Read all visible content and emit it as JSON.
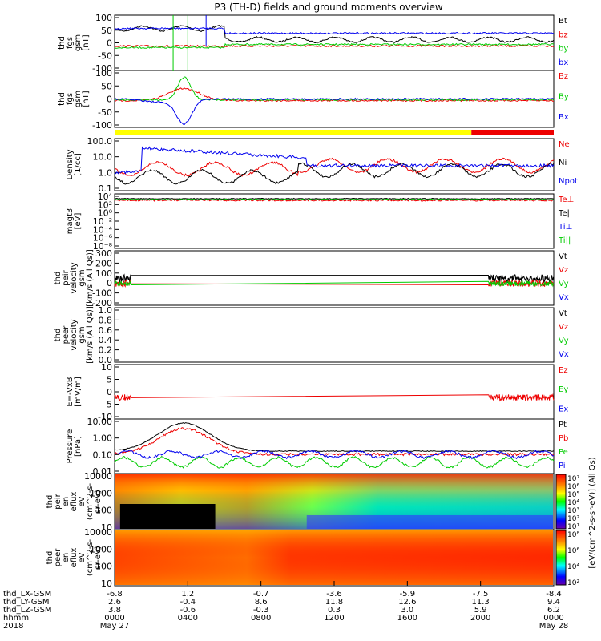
{
  "title": "P3 (TH-D) fields and ground moments overview",
  "colors": {
    "black": "#000000",
    "red": "#ee0000",
    "green": "#00cc00",
    "blue": "#0000ee",
    "yellow": "#ffff00"
  },
  "x_axis": {
    "ticks": [
      0,
      4,
      8,
      12,
      16,
      20,
      24
    ],
    "rows": [
      {
        "label": "thd_LX-GSM",
        "values": [
          "-6.8",
          "1.2",
          "-0.7",
          "-3.6",
          "-5.9",
          "-7.5",
          "-8.4"
        ]
      },
      {
        "label": "thd_LY-GSM",
        "values": [
          "2.6",
          "-0.4",
          "8.6",
          "11.8",
          "12.6",
          "11.3",
          "9.4"
        ]
      },
      {
        "label": "thd_LZ-GSM",
        "values": [
          "3.8",
          "-0.6",
          "-0.3",
          "0.3",
          "3.0",
          "5.9",
          "6.2"
        ]
      },
      {
        "label": "hhmm",
        "values": [
          "0000",
          "0400",
          "0800",
          "1200",
          "1600",
          "2000",
          "0000"
        ]
      },
      {
        "label": "2018",
        "values": [
          "May 27",
          "",
          "",
          "",
          "",
          "",
          "May 28"
        ]
      }
    ]
  },
  "chart_data": [
    {
      "type": "line",
      "id": "fgs_low",
      "ylabel": [
        "thd",
        "fgs",
        "gsm",
        "[nT]"
      ],
      "ylim": [
        -100,
        100
      ],
      "yticks": [
        "100",
        "50",
        "0",
        "-50",
        "-100"
      ],
      "series": [
        {
          "name": "Bt",
          "color": "black"
        },
        {
          "name": "bz",
          "color": "red"
        },
        {
          "name": "by",
          "color": "green"
        },
        {
          "name": "bx",
          "color": "blue"
        }
      ]
    },
    {
      "type": "line",
      "id": "fgs",
      "ylabel": [
        "thd",
        "fgs",
        "gsm",
        "[nT]"
      ],
      "ylim": [
        -120,
        120
      ],
      "yticks": [
        "100",
        "50",
        "0",
        "-50",
        "-100"
      ],
      "series": [
        {
          "name": "Bz",
          "color": "red"
        },
        {
          "name": "By",
          "color": "green"
        },
        {
          "name": "Bx",
          "color": "blue"
        }
      ]
    },
    {
      "type": "line",
      "id": "density",
      "ylabel": [
        "Density",
        "[1/cc]"
      ],
      "scale": "log",
      "yticks": [
        "100.0",
        "10.0",
        "1.0",
        "0.1"
      ],
      "series": [
        {
          "name": "Ne",
          "color": "red"
        },
        {
          "name": "Ni",
          "color": "black"
        },
        {
          "name": "Npot",
          "color": "blue"
        }
      ]
    },
    {
      "type": "line",
      "id": "temperature",
      "ylabel": [
        "magt3",
        "[eV]"
      ],
      "scale": "log",
      "yticks": [
        "10⁴",
        "10²",
        "10⁰",
        "10⁻²",
        "10⁻⁴",
        "10⁻⁶",
        "10⁻⁸"
      ],
      "series": [
        {
          "name": "Te⊥",
          "color": "red"
        },
        {
          "name": "Te||",
          "color": "black"
        },
        {
          "name": "Ti⊥",
          "color": "blue"
        },
        {
          "name": "Ti||",
          "color": "green"
        }
      ]
    },
    {
      "type": "line",
      "id": "peir_vel",
      "ylabel": [
        "thd",
        "peir",
        "velocity",
        "gsm",
        "[km/s (All Qs)]"
      ],
      "ylim": [
        -200,
        300
      ],
      "yticks": [
        "300",
        "200",
        "100",
        "0",
        "-100",
        "-200"
      ],
      "series": [
        {
          "name": "Vt",
          "color": "black"
        },
        {
          "name": "Vz",
          "color": "red"
        },
        {
          "name": "Vy",
          "color": "green"
        },
        {
          "name": "Vx",
          "color": "blue"
        }
      ]
    },
    {
      "type": "line",
      "id": "peer_vel",
      "ylabel": [
        "thd",
        "peer",
        "velocity",
        "gsm",
        "[km/s (All Qs)]"
      ],
      "ylim": [
        0,
        1
      ],
      "yticks": [
        "1.0",
        "0.8",
        "0.6",
        "0.4",
        "0.2",
        "0.0"
      ],
      "series": [
        {
          "name": "Vt",
          "color": "black"
        },
        {
          "name": "Vz",
          "color": "red"
        },
        {
          "name": "Vy",
          "color": "green"
        },
        {
          "name": "Vx",
          "color": "blue"
        }
      ]
    },
    {
      "type": "line",
      "id": "efield",
      "ylabel": [
        "E=-VxB",
        "[mV/m]"
      ],
      "ylim": [
        -10,
        10
      ],
      "yticks": [
        "10",
        "5",
        "0",
        "-5",
        "-10"
      ],
      "series": [
        {
          "name": "Ez",
          "color": "red"
        },
        {
          "name": "Ey",
          "color": "green"
        },
        {
          "name": "Ex",
          "color": "blue"
        }
      ]
    },
    {
      "type": "line",
      "id": "pressure",
      "ylabel": [
        "Pressure",
        "[nPa]"
      ],
      "scale": "log",
      "yticks": [
        "10.00",
        "1.00",
        "0.10",
        "0.01"
      ],
      "series": [
        {
          "name": "Pt",
          "color": "black"
        },
        {
          "name": "Pb",
          "color": "red"
        },
        {
          "name": "Pe",
          "color": "green"
        },
        {
          "name": "Pi",
          "color": "blue"
        }
      ]
    },
    {
      "type": "heatmap",
      "id": "peir_en",
      "ylabel": [
        "thd",
        "peir",
        "en",
        "eflux",
        "eV",
        "(cm^2-s-",
        "sr-eV)"
      ],
      "scale": "log",
      "yticks": [
        "10000",
        "1000",
        "100",
        "10"
      ],
      "colorbar": {
        "label": "[eV/(cm^2-s-sr-eV)] (All Qs)",
        "ticks": [
          "10⁷",
          "10⁶",
          "10⁵",
          "10⁴",
          "10³",
          "10²",
          "10¹"
        ]
      }
    },
    {
      "type": "heatmap",
      "id": "peer_en",
      "ylabel": [
        "thd",
        "peer",
        "en",
        "eflux",
        "eV",
        "(cm^2-s-",
        "sr-eV)"
      ],
      "scale": "log",
      "yticks": [
        "10000",
        "1000",
        "100",
        "10"
      ],
      "colorbar": {
        "label": "[eV/(cm^2-s-sr-eV)]",
        "ticks": [
          "10⁸",
          "10⁶",
          "10⁴",
          "10²"
        ]
      }
    }
  ]
}
